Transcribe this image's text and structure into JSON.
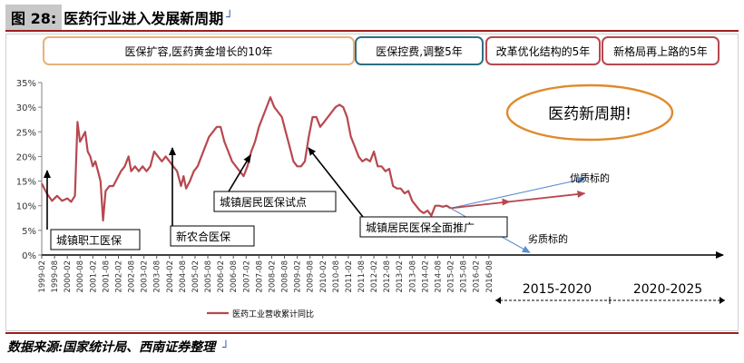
{
  "header": {
    "fig_label": "图 28:",
    "title": "医药行业进入发展新周期",
    "return_mark": "┘"
  },
  "source": {
    "text": "数据来源:国家统计局、西南证券整理",
    "return_mark": "┘"
  },
  "colors": {
    "series": "#b7484f",
    "accent": "#9e1f1f",
    "teal": "#2e6f86",
    "orange": "#e8b27a",
    "arrow_blue": "#5a8fd0"
  },
  "chart_data": {
    "type": "line",
    "ylabel": "",
    "ylim": [
      0,
      35
    ],
    "yticks": [
      "0%",
      "5%",
      "10%",
      "15%",
      "20%",
      "25%",
      "30%",
      "35%"
    ],
    "x_tick_labels": [
      "1999-02",
      "1999-08",
      "2000-02",
      "2000-08",
      "2001-02",
      "2001-08",
      "2002-02",
      "2002-08",
      "2003-02",
      "2003-08",
      "2004-02",
      "2004-08",
      "2005-02",
      "2005-08",
      "2006-02",
      "2006-08",
      "2007-02",
      "2007-08",
      "2008-02",
      "2008-08",
      "2009-02",
      "2009-08",
      "2010-02",
      "2010-08",
      "2011-02",
      "2011-08",
      "2012-02",
      "2012-08",
      "2013-02",
      "2013-08",
      "2014-02",
      "2014-08",
      "2015-02",
      "2015-08",
      "2016-02",
      "2016-08"
    ],
    "series": [
      {
        "name": "医药工业营收累计同比",
        "points": [
          [
            0,
            14.5
          ],
          [
            0.4,
            12.5
          ],
          [
            0.8,
            11
          ],
          [
            1.2,
            12
          ],
          [
            1.6,
            11
          ],
          [
            2.0,
            11.5
          ],
          [
            2.3,
            10.8
          ],
          [
            2.6,
            12
          ],
          [
            2.8,
            27
          ],
          [
            3.0,
            23
          ],
          [
            3.2,
            24
          ],
          [
            3.4,
            25
          ],
          [
            3.6,
            21
          ],
          [
            3.8,
            20
          ],
          [
            4.0,
            18
          ],
          [
            4.2,
            19
          ],
          [
            4.4,
            17
          ],
          [
            4.6,
            15
          ],
          [
            4.8,
            7
          ],
          [
            5.0,
            13
          ],
          [
            5.3,
            14
          ],
          [
            5.6,
            14
          ],
          [
            5.9,
            15.5
          ],
          [
            6.2,
            17
          ],
          [
            6.5,
            18
          ],
          [
            6.8,
            20
          ],
          [
            7.0,
            17
          ],
          [
            7.3,
            18
          ],
          [
            7.6,
            17
          ],
          [
            7.9,
            18
          ],
          [
            8.2,
            17
          ],
          [
            8.5,
            18
          ],
          [
            8.8,
            21
          ],
          [
            9.1,
            20
          ],
          [
            9.4,
            19
          ],
          [
            9.7,
            20
          ],
          [
            10.0,
            19
          ],
          [
            10.3,
            18
          ],
          [
            10.6,
            17
          ],
          [
            10.9,
            14
          ],
          [
            11.1,
            16
          ],
          [
            11.3,
            13.5
          ],
          [
            11.6,
            15
          ],
          [
            11.9,
            17
          ],
          [
            12.2,
            18
          ],
          [
            12.5,
            20
          ],
          [
            12.8,
            22
          ],
          [
            13.1,
            24
          ],
          [
            13.4,
            25
          ],
          [
            13.7,
            26
          ],
          [
            14.0,
            26
          ],
          [
            14.3,
            23
          ],
          [
            14.6,
            21
          ],
          [
            14.9,
            19
          ],
          [
            15.2,
            18
          ],
          [
            15.5,
            17
          ],
          [
            15.8,
            16
          ],
          [
            16.1,
            18
          ],
          [
            16.4,
            21
          ],
          [
            16.7,
            23
          ],
          [
            17.0,
            26
          ],
          [
            17.3,
            28
          ],
          [
            17.6,
            30
          ],
          [
            17.9,
            32
          ],
          [
            18.2,
            30
          ],
          [
            18.5,
            29
          ],
          [
            18.8,
            28
          ],
          [
            19.1,
            25
          ],
          [
            19.4,
            22
          ],
          [
            19.7,
            19
          ],
          [
            20.0,
            18
          ],
          [
            20.3,
            18
          ],
          [
            20.6,
            19
          ],
          [
            20.9,
            24
          ],
          [
            21.2,
            28
          ],
          [
            21.5,
            28
          ],
          [
            21.8,
            26
          ],
          [
            22.1,
            27
          ],
          [
            22.4,
            28
          ],
          [
            22.7,
            29
          ],
          [
            23.0,
            30
          ],
          [
            23.3,
            30.5
          ],
          [
            23.6,
            30
          ],
          [
            23.9,
            28
          ],
          [
            24.2,
            24
          ],
          [
            24.5,
            22
          ],
          [
            24.8,
            20
          ],
          [
            25.1,
            19
          ],
          [
            25.4,
            19.5
          ],
          [
            25.7,
            19
          ],
          [
            26.0,
            21
          ],
          [
            26.3,
            18
          ],
          [
            26.6,
            18
          ],
          [
            26.9,
            17
          ],
          [
            27.2,
            17.5
          ],
          [
            27.5,
            14
          ],
          [
            27.8,
            13.5
          ],
          [
            28.1,
            13.5
          ],
          [
            28.4,
            12.5
          ],
          [
            28.7,
            13
          ],
          [
            29.0,
            11
          ],
          [
            29.3,
            10
          ],
          [
            29.6,
            9
          ],
          [
            29.9,
            8.5
          ],
          [
            30.2,
            9
          ],
          [
            30.5,
            8
          ],
          [
            30.8,
            10
          ],
          [
            31.1,
            10
          ],
          [
            31.4,
            9.8
          ],
          [
            31.7,
            10
          ],
          [
            32.0,
            9.5
          ]
        ]
      }
    ],
    "projection_start": {
      "x": 32.0,
      "y": 9.5
    },
    "projection_arrows": [
      {
        "label": "优质标的",
        "end": {
          "x": 42.5,
          "y": 15.5
        },
        "color": "#5a8fd0"
      },
      {
        "label": "",
        "end": {
          "x": 42.5,
          "y": 12.5
        },
        "color": "#b7484f"
      },
      {
        "label": "劣质标的",
        "end": {
          "x": 38.2,
          "y": 0.5
        },
        "color": "#5a8fd0"
      }
    ],
    "period_labels": [
      {
        "text": "医保扩容,医药黄金增长的10年",
        "color": "#e8b27a"
      },
      {
        "text": "医保控费,调整5年",
        "color": "#2e6f86"
      },
      {
        "text": "改革优化结构的5年",
        "color": "#b7484f"
      },
      {
        "text": "新格局再上路的5年",
        "color": "#b7484f"
      }
    ],
    "callouts": [
      {
        "text": "城镇职工医保"
      },
      {
        "text": "新农合医保"
      },
      {
        "text": "城镇居民医保试点"
      },
      {
        "text": "城镇居民医保全面推广"
      }
    ],
    "oval_text": "医药新周期!",
    "timeline_labels": [
      "2015-2020",
      "2020-2025"
    ],
    "legend": {
      "label": "医药工业营收累计同比",
      "placement": "bottom-left"
    }
  }
}
